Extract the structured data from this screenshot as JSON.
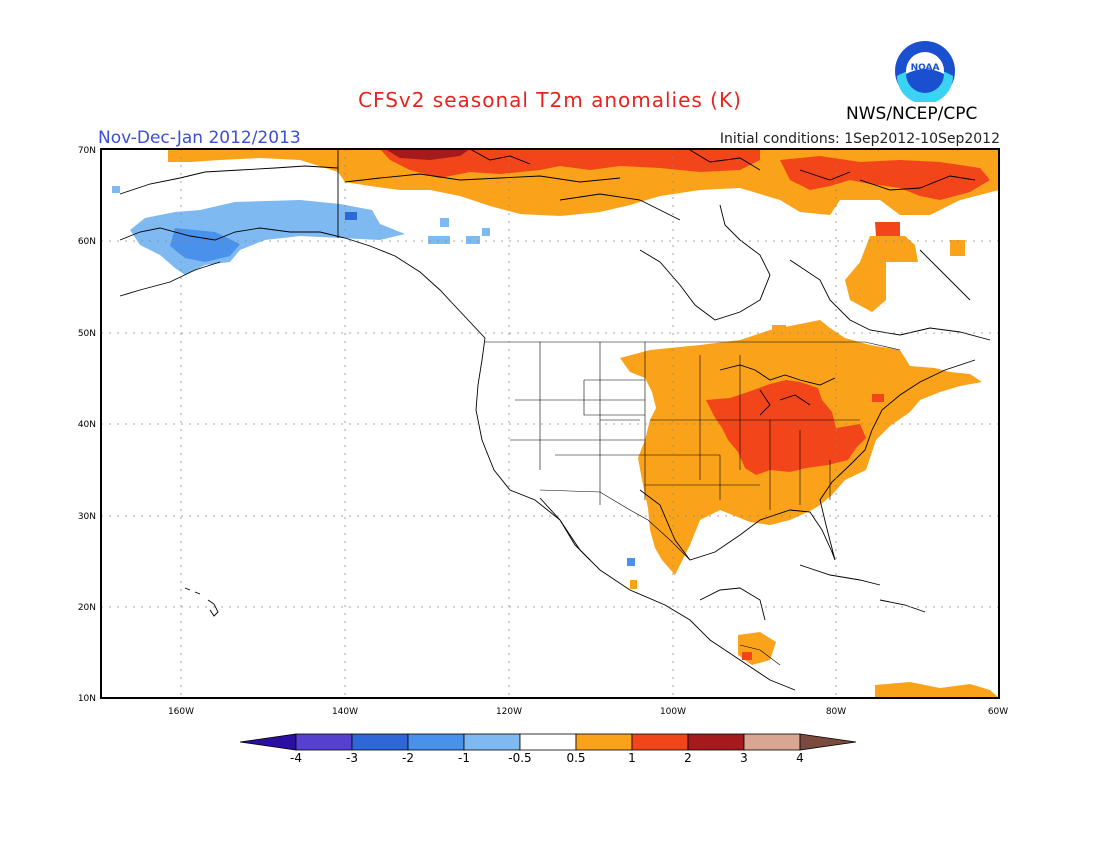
{
  "title": "CFSv2 seasonal T2m anomalies (K)",
  "period": "Nov-Dec-Jan 2012/2013",
  "initial_conditions": "Initial conditions: 1Sep2012-10Sep2012",
  "agency": "NWS/NCEP/CPC",
  "logo_text": "NOAA",
  "lat_labels": [
    "70N",
    "60N",
    "50N",
    "40N",
    "30N",
    "20N",
    "10N"
  ],
  "lon_labels": [
    "160W",
    "140W",
    "120W",
    "100W",
    "80W",
    "60W"
  ],
  "colorbar": {
    "labels": [
      "-4",
      "-3",
      "-2",
      "-1",
      "-0.5",
      "0.5",
      "1",
      "2",
      "3",
      "4"
    ],
    "colors": [
      "#2b0fa0",
      "#5540d0",
      "#2e68d8",
      "#4a91ec",
      "#7fb9f2",
      "#ffffff",
      "#f9a21a",
      "#f2451a",
      "#a51a1a",
      "#d9a691",
      "#7a4a3e"
    ]
  },
  "palette": {
    "warm1": "#f9a21a",
    "warm2": "#f2451a",
    "warm3": "#a51a1a",
    "cool1": "#7fb9f2",
    "cool2": "#4a91ec",
    "cool3": "#2e68d8"
  }
}
